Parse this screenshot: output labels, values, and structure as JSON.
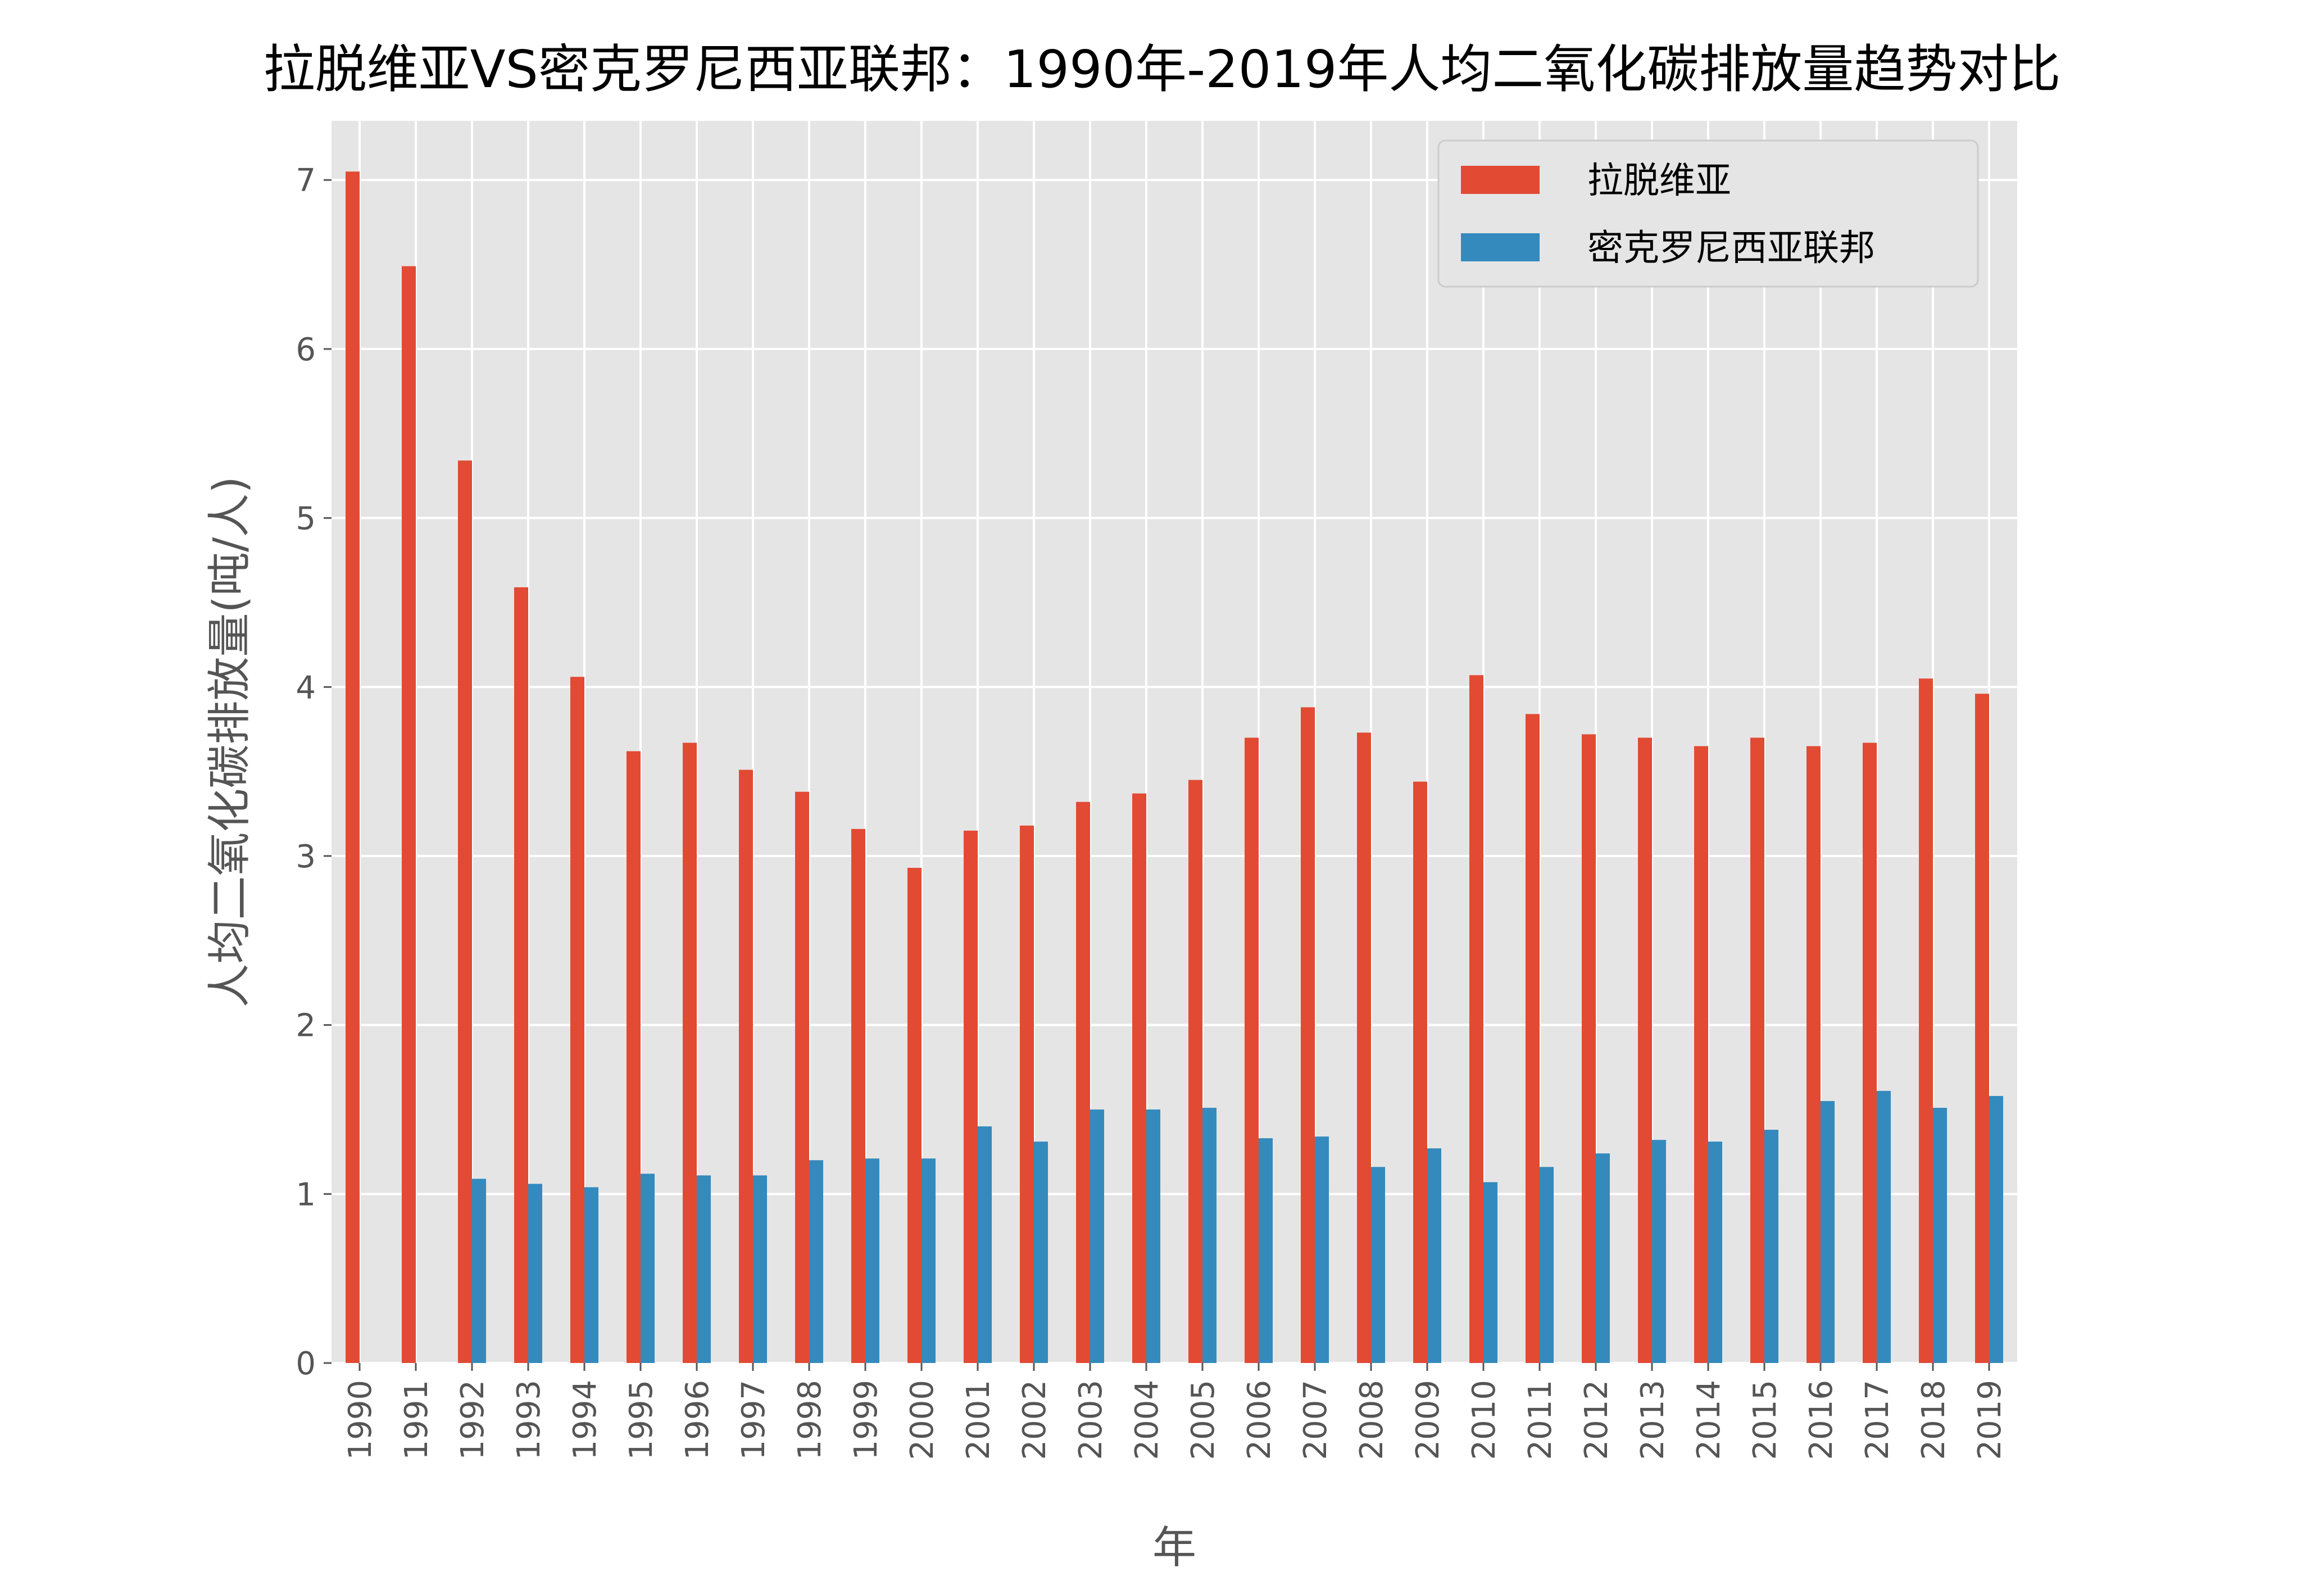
{
  "chart_data": {
    "type": "bar",
    "title": "拉脱维亚VS密克罗尼西亚联邦：1990年-2019年人均二氧化碳排放量趋势对比",
    "xlabel": "年",
    "ylabel": "人均二氧化碳排放量(吨/人)",
    "ylim": [
      0,
      7.35
    ],
    "yticks": [
      "0",
      "1",
      "2",
      "3",
      "4",
      "5",
      "6",
      "7"
    ],
    "grid": true,
    "legend_position": "top-right",
    "categories": [
      "1990",
      "1991",
      "1992",
      "1993",
      "1994",
      "1995",
      "1996",
      "1997",
      "1998",
      "1999",
      "2000",
      "2001",
      "2002",
      "2003",
      "2004",
      "2005",
      "2006",
      "2007",
      "2008",
      "2009",
      "2010",
      "2011",
      "2012",
      "2013",
      "2014",
      "2015",
      "2016",
      "2017",
      "2018",
      "2019"
    ],
    "series": [
      {
        "name": "拉脱维亚",
        "color": "#E24A33",
        "values": [
          7.05,
          6.49,
          5.34,
          4.59,
          4.06,
          3.62,
          3.67,
          3.51,
          3.38,
          3.16,
          2.93,
          3.15,
          3.18,
          3.32,
          3.37,
          3.45,
          3.7,
          3.88,
          3.73,
          3.44,
          4.07,
          3.84,
          3.72,
          3.7,
          3.65,
          3.7,
          3.65,
          3.67,
          4.05,
          3.96
        ]
      },
      {
        "name": "密克罗尼西亚联邦",
        "color": "#348ABD",
        "values": [
          null,
          null,
          1.09,
          1.06,
          1.04,
          1.12,
          1.11,
          1.11,
          1.2,
          1.21,
          1.21,
          1.4,
          1.31,
          1.5,
          1.5,
          1.51,
          1.33,
          1.34,
          1.16,
          1.27,
          1.07,
          1.16,
          1.24,
          1.32,
          1.31,
          1.38,
          1.55,
          1.61,
          1.51,
          1.58
        ]
      }
    ]
  },
  "colors": {
    "plot_background": "#E5E5E5",
    "grid": "#FFFFFF",
    "tick_text": "#555555",
    "legend_background": "#E5E5E5"
  }
}
